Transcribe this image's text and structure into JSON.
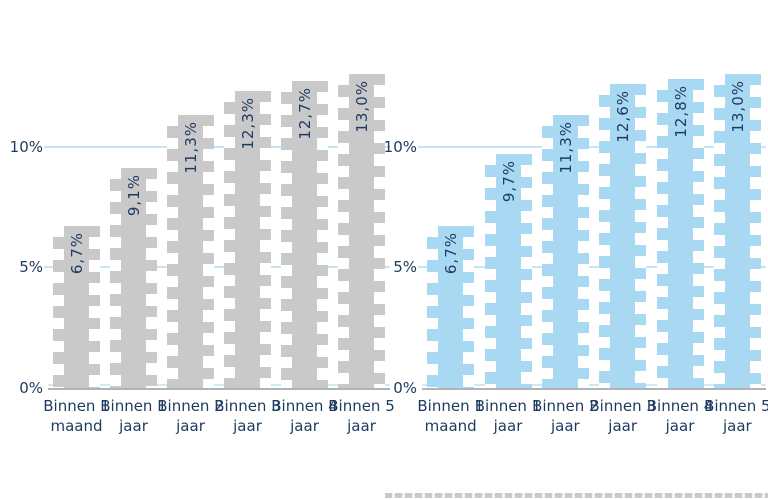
{
  "chart_data": [
    {
      "type": "bar",
      "panel": "left",
      "categories_line1": [
        "Binnen 1",
        "Binnen 1",
        "Binnen 2",
        "Binnen 3",
        "Binnen 4",
        "Binnen 5"
      ],
      "categories_line2": [
        "maand",
        "jaar",
        "jaar",
        "jaar",
        "jaar",
        "jaar"
      ],
      "values": [
        6.7,
        9.1,
        11.3,
        12.3,
        12.7,
        13.0
      ],
      "value_labels": [
        "6,7%",
        "9,1%",
        "11,3%",
        "12,3%",
        "12,7%",
        "13,0%"
      ],
      "bar_color": "#c9c9c9",
      "ylim": [
        0,
        14
      ],
      "yticks": [
        {
          "value": 0,
          "label": "0%"
        },
        {
          "value": 5,
          "label": "5%"
        },
        {
          "value": 10,
          "label": "10%"
        }
      ],
      "gridline_values": [
        5,
        10
      ],
      "legend": "none",
      "grid": "horizontal"
    },
    {
      "type": "bar",
      "panel": "right",
      "categories_line1": [
        "Binnen 1",
        "Binnen 1",
        "Binnen 2",
        "Binnen 3",
        "Binnen 4",
        "Binnen 5"
      ],
      "categories_line2": [
        "maand",
        "jaar",
        "jaar",
        "jaar",
        "jaar",
        "jaar"
      ],
      "values": [
        6.7,
        9.7,
        11.3,
        12.6,
        12.8,
        13.0
      ],
      "value_labels": [
        "6,7%",
        "9,7%",
        "11,3%",
        "12,6%",
        "12,8%",
        "13,0%"
      ],
      "bar_color": "#a9d9f2",
      "ylim": [
        0,
        14
      ],
      "yticks": [
        {
          "value": 0,
          "label": "0%"
        },
        {
          "value": 5,
          "label": "5%"
        },
        {
          "value": 10,
          "label": "10%"
        }
      ],
      "gridline_values": [
        5,
        10
      ],
      "legend": "none",
      "grid": "horizontal"
    }
  ],
  "colors": {
    "gridline": "#c5e6f7",
    "axis_line": "#b3b3b3",
    "baseline_glow": "#cdeaf8",
    "text": "#1d3a5f",
    "gray_bar": "#c9c9c9",
    "blue_bar": "#a9d9f2",
    "background": "#ffffff"
  }
}
